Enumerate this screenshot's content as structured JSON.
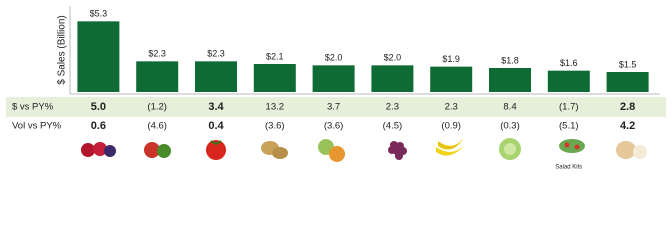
{
  "chart_data": {
    "type": "bar",
    "y_label": "$ Sales (Billion)",
    "categories": [
      null,
      null,
      null,
      null,
      null,
      null,
      null,
      null,
      "Salad Kits",
      null
    ],
    "values": [
      5.3,
      2.3,
      2.3,
      2.1,
      2.0,
      2.0,
      1.9,
      1.8,
      1.6,
      1.5
    ],
    "value_labels": [
      "$5.3",
      "$2.3",
      "$2.3",
      "$2.1",
      "$2.0",
      "$2.0",
      "$1.9",
      "$1.8",
      "$1.6",
      "$1.5"
    ],
    "color": "#0f6b34",
    "ylim": [
      0,
      6
    ]
  },
  "table": {
    "rows": [
      {
        "label": "$ vs PY%",
        "cells": [
          "5.0",
          "(1.2)",
          "3.4",
          "13.2",
          "3.7",
          "2.3",
          "2.3",
          "8.4",
          "(1.7)",
          "2.8"
        ],
        "bold": [
          true,
          false,
          true,
          false,
          false,
          false,
          false,
          false,
          false,
          true
        ]
      },
      {
        "label": "Vol vs PY%",
        "cells": [
          "0.6",
          "(4.6)",
          "0.4",
          "(3.6)",
          "(3.6)",
          "(4.5)",
          "(0.9)",
          "(0.3)",
          "(5.1)",
          "4.2"
        ],
        "bold": [
          true,
          false,
          true,
          false,
          false,
          false,
          false,
          false,
          false,
          true
        ]
      }
    ]
  }
}
